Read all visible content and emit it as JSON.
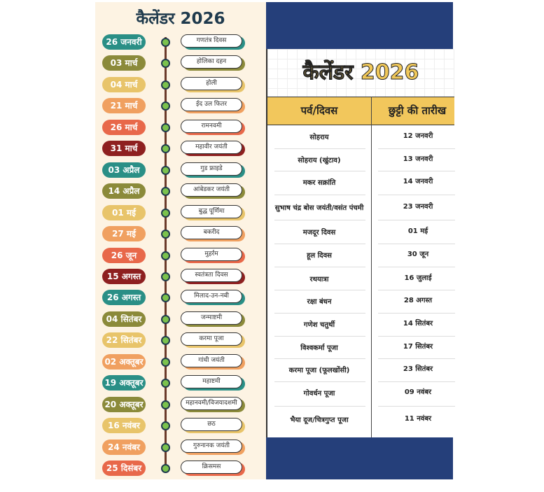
{
  "left_panel": {
    "title": "कैलेंडर 2026",
    "items": [
      {
        "date": "26 जनवरी",
        "event": "गणतंत्र दिवस",
        "color": "#2a8f86"
      },
      {
        "date": "03 मार्च",
        "event": "होलिका दहन",
        "color": "#8b8a3a"
      },
      {
        "date": "04 मार्च",
        "event": "होली",
        "color": "#e8c46a"
      },
      {
        "date": "21 मार्च",
        "event": "ईद उल फितर",
        "color": "#f0a060"
      },
      {
        "date": "26 मार्च",
        "event": "रामनवमी",
        "color": "#e8684a"
      },
      {
        "date": "31 मार्च",
        "event": "महावीर जयंती",
        "color": "#8e2020"
      },
      {
        "date": "03 अप्रैल",
        "event": "गुड फ्राइडे",
        "color": "#2a8f86"
      },
      {
        "date": "14 अप्रैल",
        "event": "आंबेडकर जयंती",
        "color": "#8b8a3a"
      },
      {
        "date": "01 मई",
        "event": "बुद्ध पूर्णिमा",
        "color": "#e8c46a"
      },
      {
        "date": "27 मई",
        "event": "बकरीद",
        "color": "#f0a060"
      },
      {
        "date": "26 जून",
        "event": "मुहर्रम",
        "color": "#e8684a"
      },
      {
        "date": "15 अगस्त",
        "event": "स्वतंत्रता दिवस",
        "color": "#8e2020"
      },
      {
        "date": "26 अगस्त",
        "event": "मिलाद-उन-नबी",
        "color": "#2a8f86"
      },
      {
        "date": "04 सितंबर",
        "event": "जन्माष्टमी",
        "color": "#8b8a3a"
      },
      {
        "date": "22 सितंबर",
        "event": "करमा पूजा",
        "color": "#e8c46a"
      },
      {
        "date": "02 अक्तूबर",
        "event": "गांधी जयंती",
        "color": "#f0a060"
      },
      {
        "date": "19 अक्तूबर",
        "event": "महाष्टमी",
        "color": "#2a8f86"
      },
      {
        "date": "20 अक्तूबर",
        "event": "महानवमी/विजयादशमी",
        "color": "#8b8a3a"
      },
      {
        "date": "16 नवंबर",
        "event": "छठ",
        "color": "#e8c46a"
      },
      {
        "date": "24 नवंबर",
        "event": "गुरुनानक जयंती",
        "color": "#f0a060"
      },
      {
        "date": "25 दिसंबर",
        "event": "क्रिसमस",
        "color": "#e8684a"
      }
    ]
  },
  "right_panel": {
    "title": "कैलेंडर 2026",
    "headers": [
      "पर्व/दिवस",
      "छुट्टी की तारीख"
    ],
    "rows": [
      [
        "सोहराय",
        "12 जनवरी"
      ],
      [
        "सोहराय (खुंटाव)",
        "13 जनवरी"
      ],
      [
        "मकर सक्रांति",
        "14 जनवरी"
      ],
      [
        "सुभाष चंद्र बोस जयंती/वसंत पंचमी",
        "23 जनवरी"
      ],
      [
        "मजदूर दिवस",
        "01 मई"
      ],
      [
        "हूल दिवस",
        "30 जून"
      ],
      [
        "रथयात्रा",
        "16 जुलाई"
      ],
      [
        "रक्षा बंधन",
        "28 अगस्त"
      ],
      [
        "गणेश चतुर्थी",
        "14 सितंबर"
      ],
      [
        "विश्वकर्मा पूजा",
        "17 सितंबर"
      ],
      [
        "करमा पूजा (फूलखोंसी)",
        "23 सितंबर"
      ],
      [
        "गोवर्धन पूजा",
        "09 नवंबर"
      ],
      [
        "भैया दूज/चित्रगुप्त पूजा",
        "11 नवंबर"
      ]
    ]
  }
}
